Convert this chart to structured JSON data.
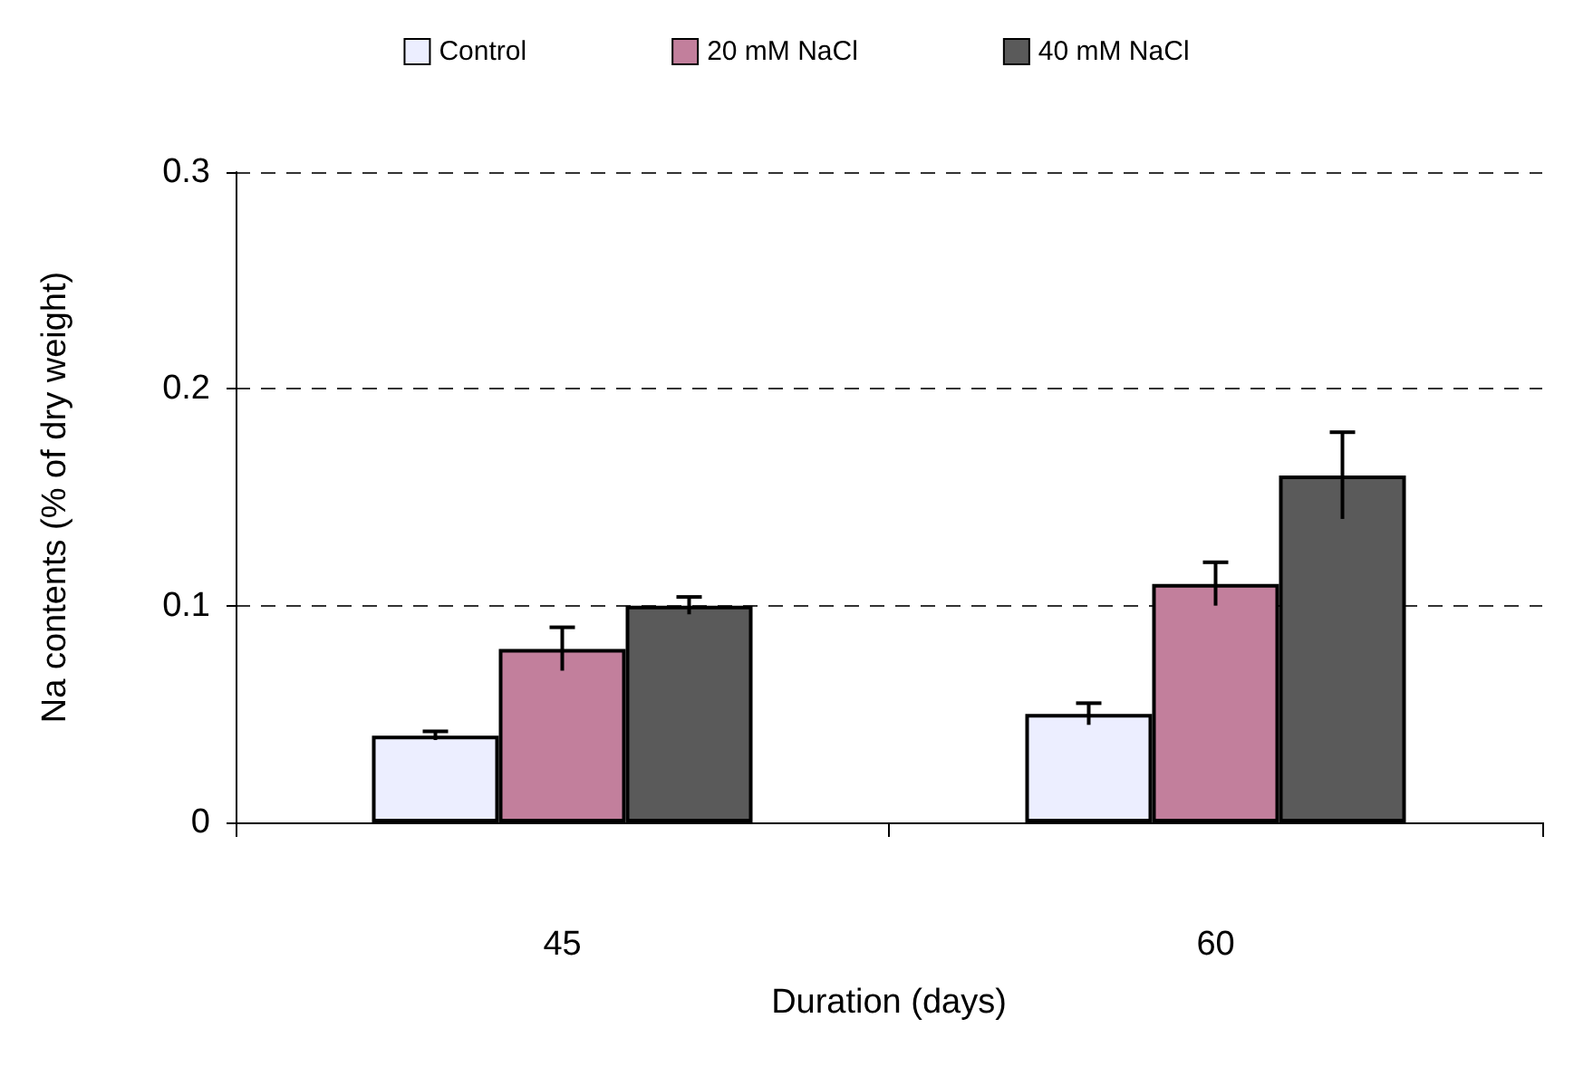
{
  "chart_data": {
    "type": "bar",
    "xlabel": "Duration (days)",
    "ylabel": "Na contents (% of dry weight)",
    "categories": [
      "45",
      "60"
    ],
    "series": [
      {
        "name": "Control",
        "color": "#eceeff",
        "values": [
          0.04,
          0.05
        ],
        "errors": [
          0.002,
          0.005
        ]
      },
      {
        "name": "20 mM NaCl",
        "color": "#c27f9c",
        "values": [
          0.08,
          0.11
        ],
        "errors": [
          0.01,
          0.01
        ]
      },
      {
        "name": "40 mM NaCl",
        "color": "#5a5a5a",
        "values": [
          0.1,
          0.16
        ],
        "errors": [
          0.004,
          0.02
        ]
      }
    ],
    "ylim": [
      0,
      0.3
    ],
    "yticks": [
      0,
      0.1,
      0.2,
      0.3
    ],
    "grid": "y",
    "legend": "top"
  }
}
